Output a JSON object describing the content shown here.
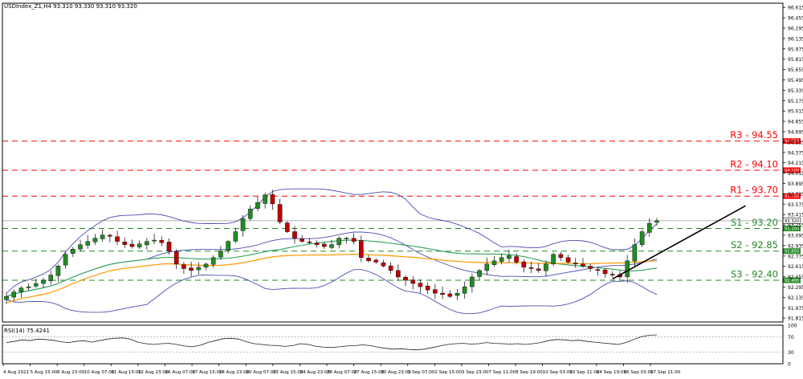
{
  "header": {
    "symbol_info": "USDIndex_Z1,H4  93.310 93.330 93.310 93.320"
  },
  "rsi_header": "RSI(14) 75.4241",
  "colors": {
    "resistance": "#ff0000",
    "support": "#228b22",
    "bull_candle": "#228b22",
    "bear_candle": "#c00000",
    "bollinger": "#4b4bb4",
    "ma_fast": "#2ca05a",
    "ma_slow": "#ff9900",
    "trendline": "#000000",
    "rsi_line": "#222222",
    "current_price_line": "#9a9a9a"
  },
  "chart_data": [
    {
      "type": "candlestick",
      "symbol": "USDIndex_Z1",
      "timeframe": "H4",
      "ylim": [
        91.755,
        96.68
      ],
      "y_ticks": [
        "96.615",
        "96.455",
        "96.295",
        "96.135",
        "95.975",
        "95.815",
        "95.655",
        "95.495",
        "95.335",
        "95.175",
        "95.015",
        "94.855",
        "94.695",
        "94.535",
        "94.375",
        "94.215",
        "94.055",
        "93.895",
        "93.735",
        "93.575",
        "93.415",
        "93.255",
        "93.095",
        "92.935",
        "92.775",
        "92.615",
        "92.455",
        "92.295",
        "92.135",
        "91.975",
        "91.815"
      ],
      "x_tick_labels": [
        "4 Aug 2021",
        "5 Aug 15:00",
        "6 Aug 23:00",
        "10 Aug 07:00",
        "11 Aug 15:00",
        "12 Aug 23:00",
        "16 Aug 07:00",
        "17 Aug 15:00",
        "18 Aug 23:00",
        "20 Aug 07:00",
        "23 Aug 15:00",
        "24 Aug 23:00",
        "26 Aug 07:00",
        "27 Aug 15:00",
        "30 Aug 23:00",
        "1 Sep 07:00",
        "2 Sep 15:00",
        "3 Sep 23:00",
        "7 Sep 11:00",
        "8 Sep 19:00",
        "10 Sep 03:00",
        "13 Sep 11:00",
        "14 Sep 19:00",
        "16 Sep 03:00",
        "17 Sep 11:00"
      ],
      "levels": [
        {
          "name": "R3",
          "label": "R3 - 94.55",
          "value": 94.55,
          "tag": "94.550",
          "kind": "resistance"
        },
        {
          "name": "R2",
          "label": "R2 - 94.10",
          "value": 94.1,
          "tag": "94.100",
          "kind": "resistance"
        },
        {
          "name": "R1",
          "label": "R1 - 93.70",
          "value": 93.7,
          "tag": "93.700",
          "kind": "resistance"
        },
        {
          "name": "S1",
          "label": "S1 - 93.20",
          "value": 93.2,
          "tag": "93.200",
          "kind": "support"
        },
        {
          "name": "S2",
          "label": "S2 - 92.85",
          "value": 92.85,
          "tag": "92.850",
          "kind": "support"
        },
        {
          "name": "S3",
          "label": "S3 - 92.40",
          "value": 92.4,
          "tag": "92.400",
          "kind": "support"
        }
      ],
      "current_price": {
        "value": 93.32,
        "tag": "93.320"
      },
      "close_path": [
        92.15,
        92.22,
        92.28,
        92.3,
        92.35,
        92.4,
        92.48,
        92.62,
        92.8,
        92.88,
        92.95,
        93.0,
        93.05,
        93.1,
        93.08,
        93.0,
        92.95,
        92.92,
        92.96,
        93.0,
        93.02,
        92.98,
        92.85,
        92.65,
        92.58,
        92.55,
        92.6,
        92.65,
        92.75,
        92.85,
        93.0,
        93.15,
        93.35,
        93.5,
        93.6,
        93.72,
        93.58,
        93.3,
        93.15,
        93.05,
        93.0,
        92.98,
        92.95,
        92.92,
        92.95,
        93.05,
        93.05,
        93.0,
        92.75,
        92.7,
        92.68,
        92.62,
        92.55,
        92.45,
        92.4,
        92.35,
        92.3,
        92.25,
        92.2,
        92.18,
        92.15,
        92.2,
        92.3,
        92.45,
        92.55,
        92.65,
        92.7,
        92.75,
        92.78,
        92.68,
        92.6,
        92.58,
        92.55,
        92.65,
        92.8,
        92.75,
        92.68,
        92.65,
        92.62,
        92.58,
        92.55,
        92.5,
        92.48,
        92.45,
        92.7,
        92.95,
        93.15,
        93.28,
        93.32
      ],
      "indicators": {
        "bollinger_bands": {
          "period": 20
        },
        "moving_averages": [
          {
            "color_key": "ma_fast"
          },
          {
            "color_key": "ma_slow"
          }
        ],
        "trendline": {
          "from": {
            "index": 82,
            "price": 92.42
          },
          "to": {
            "index": 100,
            "price": 93.55
          }
        }
      }
    },
    {
      "type": "line",
      "name": "RSI(14)",
      "value_last": 75.4241,
      "ylim": [
        0,
        100
      ],
      "y_ticks": [
        "100",
        "70",
        "30",
        "0"
      ],
      "values": [
        55,
        58,
        62,
        60,
        64,
        63,
        61,
        57,
        55,
        58,
        60,
        56,
        60,
        64,
        66,
        67,
        64,
        56,
        52,
        50,
        52,
        53,
        50,
        46,
        44,
        48,
        55,
        60,
        65,
        66,
        64,
        57,
        52,
        50,
        48,
        47,
        45,
        47,
        52,
        50,
        45,
        43,
        42,
        44,
        46,
        47,
        49,
        47,
        43,
        40,
        38,
        39,
        37,
        36,
        38,
        42,
        46,
        50,
        52,
        53,
        51,
        52,
        55,
        53,
        52,
        51,
        52,
        50,
        52,
        55,
        60,
        63,
        62,
        60,
        61,
        58,
        56,
        54,
        52,
        50,
        55,
        63,
        70,
        74,
        75
      ]
    }
  ]
}
